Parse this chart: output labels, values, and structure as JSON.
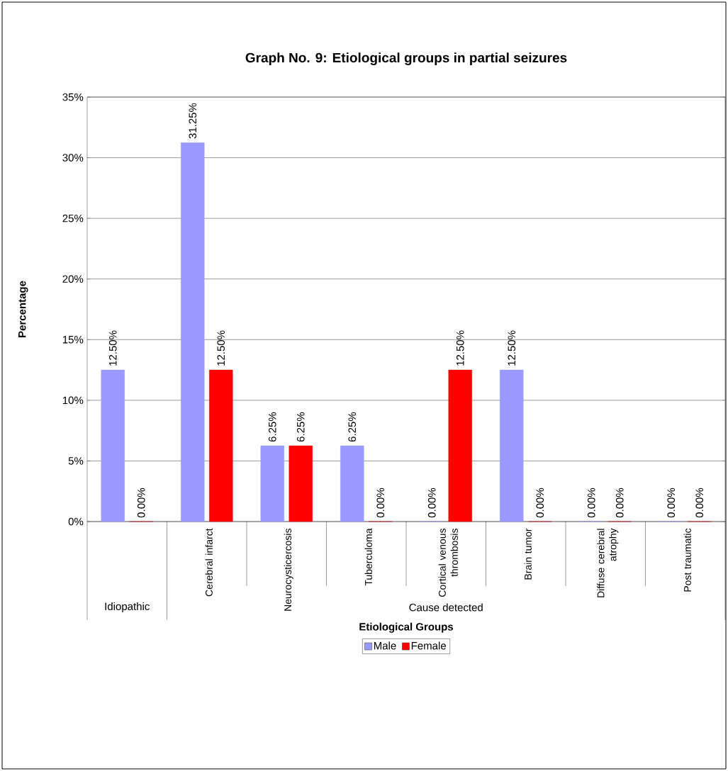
{
  "chart_data": {
    "type": "bar",
    "title": "Graph No. 9: Etiological groups in partial seizures",
    "xlabel": "Etiological Groups",
    "ylabel": "Percentage",
    "categories": [
      null,
      "Cerebral infarct",
      "Neurocysticercosis",
      "Tuberculoma",
      "Cortical venous thrombosis",
      "Brain tumor",
      "Diffuse cerebral atrophy",
      "Post traumatic"
    ],
    "annotations": [
      "Idiopathic",
      "Cause detected"
    ],
    "series": [
      {
        "name": "Male",
        "color": "#9999ff",
        "values": [
          12.5,
          31.25,
          6.25,
          6.25,
          0,
          12.5,
          0,
          0
        ],
        "value_labels": [
          "12.50%",
          "31.25%",
          "6.25%",
          "6.25%",
          "0.00%",
          "12.50%",
          "0.00%",
          "0.00%"
        ]
      },
      {
        "name": "Female",
        "color": "#ff0000",
        "values": [
          0,
          12.5,
          6.25,
          0,
          12.5,
          0,
          0,
          0
        ],
        "value_labels": [
          "0.00%",
          "12.50%",
          "6.25%",
          "0.00%",
          "12.50%",
          "0.00%",
          "0.00%",
          "0.00%"
        ]
      }
    ],
    "ylim": [
      0,
      35
    ],
    "yticks": [
      {
        "value": 0,
        "label": "0%"
      },
      {
        "value": 5,
        "label": "5%"
      },
      {
        "value": 10,
        "label": "10%"
      },
      {
        "value": 15,
        "label": "15%"
      },
      {
        "value": 20,
        "label": "20%"
      },
      {
        "value": 25,
        "label": "25%"
      },
      {
        "value": 30,
        "label": "30%"
      },
      {
        "value": 35,
        "label": "35%"
      }
    ],
    "grid": "y",
    "legend": "bottom"
  }
}
